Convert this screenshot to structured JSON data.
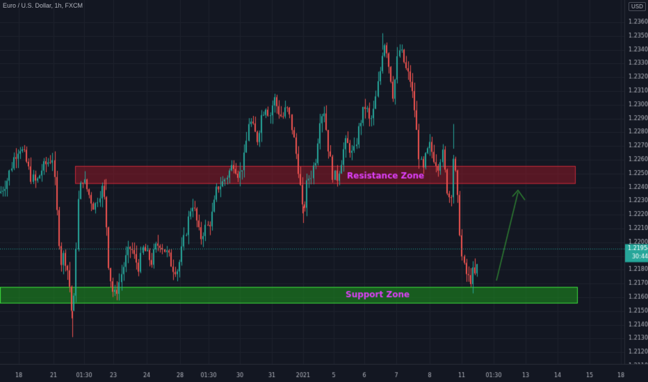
{
  "header": {
    "symbol": "Euro / U.S. Dollar, 1h, FXCM",
    "currency_button": "USD"
  },
  "price_axis": {
    "ticks": [
      "1.23600",
      "1.23500",
      "1.23400",
      "1.23300",
      "1.23200",
      "1.23100",
      "1.23000",
      "1.22900",
      "1.22800",
      "1.22700",
      "1.22600",
      "1.22500",
      "1.22400",
      "1.22300",
      "1.22200",
      "1.22100",
      "1.22000",
      "1.21900",
      "1.21800",
      "1.21700",
      "1.21600",
      "1.21500",
      "1.21400",
      "1.21300",
      "1.21200",
      "1.21100"
    ],
    "last_price": "1.21954",
    "countdown": "30:44",
    "last_price_color": "#26a69a"
  },
  "time_axis": {
    "ticks": [
      "18",
      "21",
      "01:30",
      "23",
      "24",
      "28",
      "01:30",
      "30",
      "31",
      "2021",
      "5",
      "6",
      "7",
      "8",
      "11",
      "01:30",
      "13",
      "14",
      "15",
      "18"
    ]
  },
  "zones": {
    "resistance_label": "Resistance Zone",
    "support_label": "Support Zone",
    "resistance_range": [
      1.22425,
      1.22555
    ],
    "support_range": [
      1.21555,
      1.21675
    ],
    "resistance_color": "#f23645",
    "support_color": "#2db52d",
    "label_color": "#e040fb"
  },
  "colors": {
    "background": "#131722",
    "grid": "#1e222d",
    "up": "#26a69a",
    "down": "#ef5350",
    "arrow": "#2e7d32",
    "axis_text": "#b2b5be"
  },
  "chart_data": {
    "type": "candlestick",
    "instrument": "EURUSD",
    "timeframe": "1h",
    "ylim": [
      1.2105,
      1.237
    ],
    "price_path": [
      [
        0,
        1.2236
      ],
      [
        10,
        1.2245
      ],
      [
        20,
        1.2262
      ],
      [
        28,
        1.227
      ],
      [
        36,
        1.2262
      ],
      [
        44,
        1.2248
      ],
      [
        52,
        1.2243
      ],
      [
        60,
        1.2253
      ],
      [
        68,
        1.2258
      ],
      [
        76,
        1.2262
      ],
      [
        80,
        1.2232
      ],
      [
        84,
        1.2205
      ],
      [
        88,
        1.2185
      ],
      [
        92,
        1.2192
      ],
      [
        98,
        1.2178
      ],
      [
        102,
        1.216
      ],
      [
        105,
        1.2138
      ],
      [
        108,
        1.218
      ],
      [
        112,
        1.2228
      ],
      [
        118,
        1.2248
      ],
      [
        124,
        1.224
      ],
      [
        130,
        1.2232
      ],
      [
        136,
        1.2225
      ],
      [
        142,
        1.2235
      ],
      [
        148,
        1.224
      ],
      [
        152,
        1.222
      ],
      [
        156,
        1.2185
      ],
      [
        160,
        1.217
      ],
      [
        164,
        1.216
      ],
      [
        170,
        1.2168
      ],
      [
        176,
        1.218
      ],
      [
        182,
        1.219
      ],
      [
        188,
        1.2197
      ],
      [
        194,
        1.2188
      ],
      [
        200,
        1.2182
      ],
      [
        206,
        1.2196
      ],
      [
        212,
        1.219
      ],
      [
        218,
        1.2186
      ],
      [
        224,
        1.2196
      ],
      [
        230,
        1.22
      ],
      [
        236,
        1.2195
      ],
      [
        242,
        1.219
      ],
      [
        248,
        1.2182
      ],
      [
        256,
        1.218
      ],
      [
        262,
        1.2195
      ],
      [
        268,
        1.221
      ],
      [
        276,
        1.223
      ],
      [
        282,
        1.2218
      ],
      [
        288,
        1.2202
      ],
      [
        294,
        1.221
      ],
      [
        300,
        1.2212
      ],
      [
        306,
        1.2222
      ],
      [
        312,
        1.224
      ],
      [
        320,
        1.2243
      ],
      [
        328,
        1.225
      ],
      [
        336,
        1.2258
      ],
      [
        344,
        1.2248
      ],
      [
        352,
        1.2262
      ],
      [
        358,
        1.229
      ],
      [
        364,
        1.2282
      ],
      [
        370,
        1.2275
      ],
      [
        376,
        1.2292
      ],
      [
        382,
        1.23
      ],
      [
        388,
        1.2292
      ],
      [
        394,
        1.2305
      ],
      [
        400,
        1.2296
      ],
      [
        406,
        1.229
      ],
      [
        412,
        1.2298
      ],
      [
        418,
        1.2288
      ],
      [
        424,
        1.227
      ],
      [
        430,
        1.225
      ],
      [
        436,
        1.2218
      ],
      [
        442,
        1.2245
      ],
      [
        448,
        1.225
      ],
      [
        454,
        1.2262
      ],
      [
        460,
        1.2292
      ],
      [
        466,
        1.2296
      ],
      [
        472,
        1.227
      ],
      [
        478,
        1.225
      ],
      [
        484,
        1.2246
      ],
      [
        490,
        1.2258
      ],
      [
        496,
        1.2272
      ],
      [
        502,
        1.227
      ],
      [
        508,
        1.2262
      ],
      [
        514,
        1.2278
      ],
      [
        520,
        1.2292
      ],
      [
        526,
        1.23
      ],
      [
        532,
        1.2286
      ],
      [
        538,
        1.2296
      ],
      [
        542,
        1.231
      ],
      [
        546,
        1.2322
      ],
      [
        550,
        1.234
      ],
      [
        554,
        1.2348
      ],
      [
        558,
        1.2332
      ],
      [
        562,
        1.232
      ],
      [
        566,
        1.2305
      ],
      [
        570,
        1.2328
      ],
      [
        574,
        1.234
      ],
      [
        578,
        1.2336
      ],
      [
        584,
        1.2325
      ],
      [
        590,
        1.2318
      ],
      [
        596,
        1.2298
      ],
      [
        602,
        1.2265
      ],
      [
        608,
        1.225
      ],
      [
        612,
        1.2262
      ],
      [
        618,
        1.227
      ],
      [
        624,
        1.2262
      ],
      [
        630,
        1.2256
      ],
      [
        636,
        1.2266
      ],
      [
        642,
        1.224
      ],
      [
        648,
        1.223
      ],
      [
        652,
        1.2262
      ],
      [
        656,
        1.2245
      ],
      [
        660,
        1.2218
      ],
      [
        664,
        1.219
      ],
      [
        668,
        1.218
      ],
      [
        672,
        1.2175
      ],
      [
        676,
        1.2172
      ],
      [
        680,
        1.2178
      ],
      [
        684,
        1.2175
      ],
      [
        688,
        1.2188
      ]
    ],
    "last_price": 1.21954
  }
}
